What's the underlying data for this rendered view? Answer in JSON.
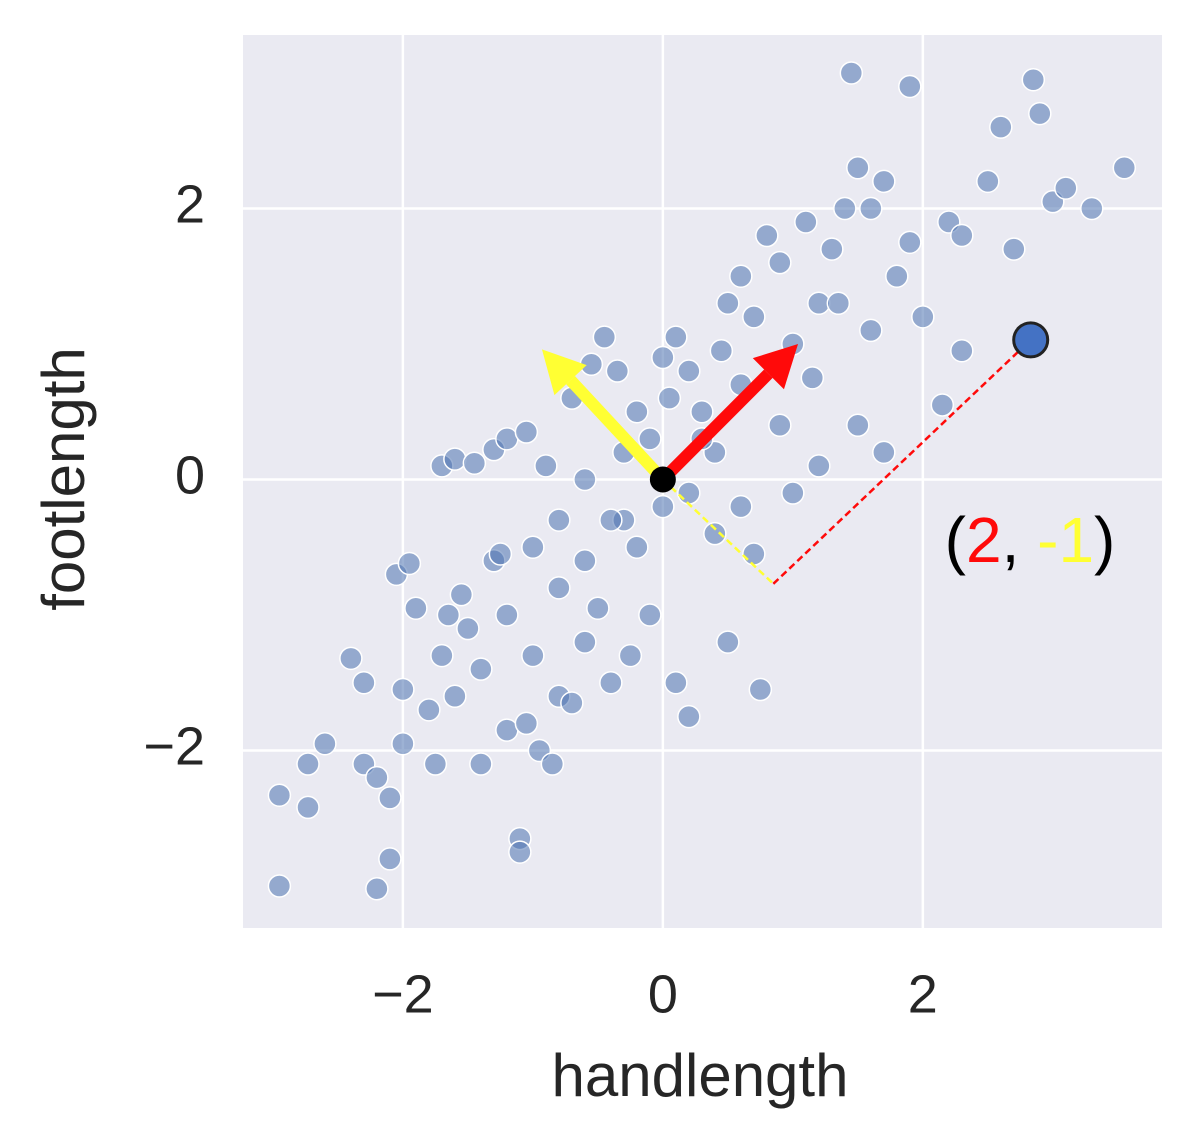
{
  "chart_data": {
    "type": "scatter",
    "xlabel": "handlength",
    "ylabel": "footlength",
    "xlim": [
      -3.23,
      3.84
    ],
    "ylim": [
      -3.31,
      3.28
    ],
    "xticks": [
      {
        "value": -2,
        "label": "−2"
      },
      0,
      2
    ],
    "yticks": [
      {
        "value": -2,
        "label": "−2"
      },
      0,
      2
    ],
    "grid": true,
    "color": "#4c72b0",
    "x": [
      -2.95,
      -2.95,
      -2.73,
      -2.73,
      -2.6,
      -2.4,
      -2.3,
      -2.3,
      -2.2,
      -2.2,
      -2.1,
      -2.1,
      -2.05,
      -1.95,
      -2.0,
      -2.0,
      -1.9,
      -1.8,
      -1.75,
      -1.6,
      -1.7,
      -1.65,
      -1.55,
      -1.4,
      -1.4,
      -1.3,
      -1.25,
      -1.2,
      -1.1,
      -1.1,
      -1.05,
      -1.0,
      -0.95,
      -0.85,
      -0.8,
      -0.7,
      -0.6,
      -0.5,
      -0.4,
      -0.3,
      -1.7,
      -1.6,
      -1.45,
      -1.3,
      -1.2,
      -1.05,
      -0.9,
      -0.8,
      -0.7,
      -0.55,
      -0.45,
      -0.35,
      -0.2,
      -0.1,
      0.0,
      0.1,
      0.2,
      0.3,
      0.4,
      0.5,
      0.6,
      0.7,
      0.8,
      0.9,
      1.0,
      1.1,
      1.2,
      1.3,
      1.4,
      1.5,
      1.6,
      1.7,
      1.8,
      1.9,
      2.0,
      2.2,
      2.3,
      2.5,
      2.6,
      2.7,
      2.85,
      2.9,
      3.0,
      3.1,
      3.3,
      3.55,
      1.45,
      1.9,
      2.15,
      2.3,
      1.7,
      1.5,
      1.2,
      1.0,
      0.7,
      0.75,
      0.5,
      0.2,
      0.1,
      -0.1,
      -0.2,
      0.0,
      0.2,
      0.4,
      -0.4,
      -0.6,
      -0.8,
      -1.0,
      -1.2,
      0.3,
      0.6,
      0.9,
      -0.3,
      -0.6,
      0.05,
      0.45,
      1.15,
      1.35,
      -1.5,
      -0.25,
      0.6,
      1.6
    ],
    "y": [
      -2.33,
      -3.0,
      -2.42,
      -2.1,
      -1.95,
      -1.32,
      -1.5,
      -2.1,
      -2.2,
      -3.02,
      -2.35,
      -2.8,
      -0.7,
      -0.62,
      -1.55,
      -1.95,
      -0.95,
      -1.7,
      -2.1,
      -1.6,
      -1.3,
      -1.0,
      -0.85,
      -1.4,
      -2.1,
      -0.6,
      -0.55,
      -1.85,
      -2.65,
      -2.75,
      -1.8,
      -1.3,
      -2.0,
      -2.1,
      -1.6,
      -1.65,
      -1.2,
      -0.95,
      -1.5,
      -0.3,
      0.1,
      0.15,
      0.12,
      0.22,
      0.3,
      0.35,
      0.1,
      -0.3,
      0.6,
      0.85,
      1.05,
      0.8,
      0.5,
      0.3,
      0.9,
      1.05,
      0.8,
      0.5,
      0.2,
      1.3,
      1.5,
      1.2,
      1.8,
      1.6,
      1.0,
      1.9,
      1.3,
      1.7,
      2.0,
      2.3,
      2.0,
      2.2,
      1.5,
      1.75,
      1.2,
      1.9,
      1.8,
      2.2,
      2.6,
      1.7,
      2.95,
      2.7,
      2.05,
      2.15,
      2.0,
      2.3,
      3.0,
      2.9,
      0.55,
      0.95,
      0.2,
      0.4,
      0.1,
      -0.1,
      -0.55,
      -1.55,
      -1.2,
      -1.75,
      -1.5,
      -1.0,
      -0.5,
      -0.2,
      -0.1,
      -0.4,
      -0.3,
      -0.6,
      -0.8,
      -0.5,
      -1.0,
      0.3,
      0.7,
      0.4,
      0.2,
      0.0,
      0.6,
      0.95,
      0.75,
      1.3,
      -1.1,
      -1.3,
      -0.2,
      1.1
    ],
    "highlight": {
      "x": 2.83,
      "y": 1.03,
      "color": "#4472c4"
    },
    "origin": {
      "x": 0,
      "y": 0
    },
    "vectors": [
      {
        "x": 1.04,
        "y": 1.0,
        "color": "#ff0a0a"
      },
      {
        "x": -0.93,
        "y": 0.96,
        "color": "#ffff33"
      }
    ],
    "projection": {
      "x": 0.85,
      "y": -0.77
    },
    "label_parts": [
      {
        "text": "(",
        "color": "#000000"
      },
      {
        "text": "2",
        "color": "#ff0a0a"
      },
      {
        "text": ", ",
        "color": "#000000"
      },
      {
        "text": "-1",
        "color": "#ffff33"
      },
      {
        "text": ")",
        "color": "#000000"
      }
    ]
  }
}
